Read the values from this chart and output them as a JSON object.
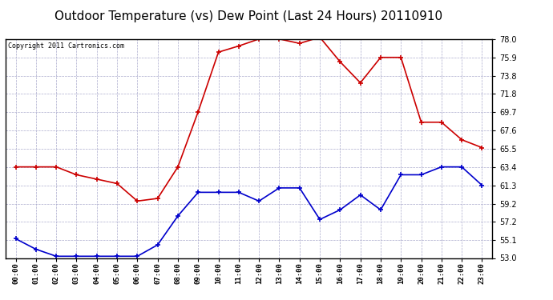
{
  "title": "Outdoor Temperature (vs) Dew Point (Last 24 Hours) 20110910",
  "copyright": "Copyright 2011 Cartronics.com",
  "hours": [
    "00:00",
    "01:00",
    "02:00",
    "03:00",
    "04:00",
    "05:00",
    "06:00",
    "07:00",
    "08:00",
    "09:00",
    "10:00",
    "11:00",
    "12:00",
    "13:00",
    "14:00",
    "15:00",
    "16:00",
    "17:00",
    "18:00",
    "19:00",
    "20:00",
    "21:00",
    "22:00",
    "23:00"
  ],
  "temp": [
    55.2,
    54.0,
    53.2,
    53.2,
    53.2,
    53.2,
    53.2,
    54.5,
    57.8,
    60.5,
    60.5,
    60.5,
    59.5,
    61.0,
    61.0,
    57.4,
    58.5,
    60.2,
    58.5,
    62.5,
    62.5,
    63.4,
    63.4,
    61.3
  ],
  "dew": [
    63.4,
    63.4,
    63.4,
    62.5,
    62.0,
    61.5,
    59.5,
    59.8,
    63.4,
    69.7,
    76.5,
    77.2,
    78.0,
    78.0,
    77.5,
    78.2,
    75.4,
    73.0,
    75.9,
    75.9,
    68.5,
    68.5,
    66.5,
    65.6
  ],
  "temp_color": "#0000cc",
  "dew_color": "#cc0000",
  "ylim_min": 53.0,
  "ylim_max": 78.0,
  "yticks": [
    53.0,
    55.1,
    57.2,
    59.2,
    61.3,
    63.4,
    65.5,
    67.6,
    69.7,
    71.8,
    73.8,
    75.9,
    78.0
  ],
  "bg_color": "#ffffff",
  "plot_bg": "#ffffff",
  "grid_color": "#aaaacc",
  "title_fontsize": 11,
  "copyright_fontsize": 6,
  "marker": "+",
  "marker_size": 5,
  "line_width": 1.2
}
